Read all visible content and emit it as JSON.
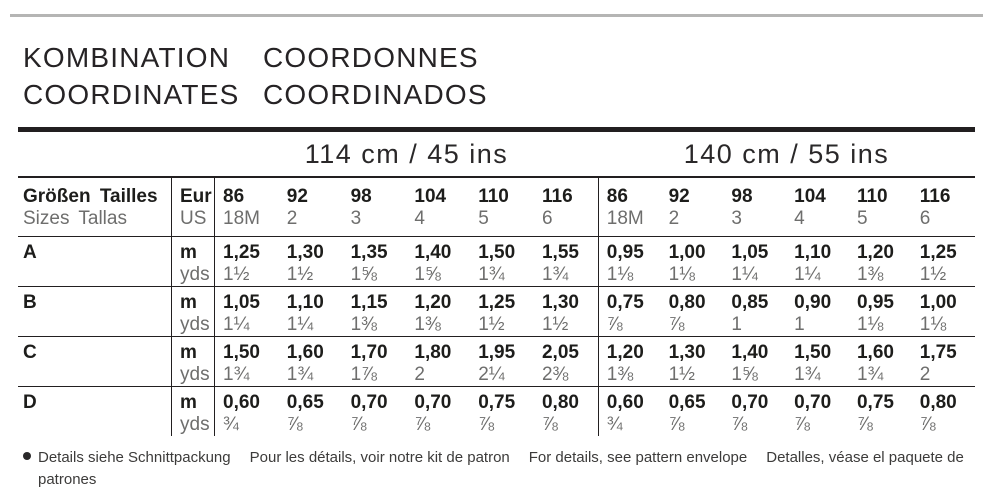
{
  "title": {
    "de": "KOMBINATION",
    "fr": "COORDONNES",
    "en": "COORDINATES",
    "es": "COORDINADOS"
  },
  "width_groups": {
    "g114": "114 cm / 45 ins",
    "g140": "140 cm / 55 ins"
  },
  "table": {
    "size_label_line1": "Größen Tailles",
    "size_label_line2": "Sizes Tallas",
    "unit_header_line1": "Eur",
    "unit_header_line2": "US",
    "unit_m": "m",
    "unit_yds": "yds",
    "sizes_eur": [
      "86",
      "92",
      "98",
      "104",
      "110",
      "116"
    ],
    "sizes_us": [
      "18M",
      "2",
      "3",
      "4",
      "5",
      "6"
    ],
    "rows": [
      {
        "label": "A",
        "m114": [
          "1,25",
          "1,30",
          "1,35",
          "1,40",
          "1,50",
          "1,55"
        ],
        "y114": [
          "1½",
          "1½",
          "1⅝",
          "1⅝",
          "1¾",
          "1¾"
        ],
        "m140": [
          "0,95",
          "1,00",
          "1,05",
          "1,10",
          "1,20",
          "1,25"
        ],
        "y140": [
          "1⅛",
          "1⅛",
          "1¼",
          "1¼",
          "1⅜",
          "1½"
        ]
      },
      {
        "label": "B",
        "m114": [
          "1,05",
          "1,10",
          "1,15",
          "1,20",
          "1,25",
          "1,30"
        ],
        "y114": [
          "1¼",
          "1¼",
          "1⅜",
          "1⅜",
          "1½",
          "1½"
        ],
        "m140": [
          "0,75",
          "0,80",
          "0,85",
          "0,90",
          "0,95",
          "1,00"
        ],
        "y140": [
          "⅞",
          "⅞",
          "1",
          "1",
          "1⅛",
          "1⅛"
        ]
      },
      {
        "label": "C",
        "m114": [
          "1,50",
          "1,60",
          "1,70",
          "1,80",
          "1,95",
          "2,05"
        ],
        "y114": [
          "1¾",
          "1¾",
          "1⅞",
          "2",
          "2¼",
          "2⅜"
        ],
        "m140": [
          "1,20",
          "1,30",
          "1,40",
          "1,50",
          "1,60",
          "1,75"
        ],
        "y140": [
          "1⅜",
          "1½",
          "1⅝",
          "1¾",
          "1¾",
          "2"
        ]
      },
      {
        "label": "D",
        "m114": [
          "0,60",
          "0,65",
          "0,70",
          "0,70",
          "0,75",
          "0,80"
        ],
        "y114": [
          "¾",
          "⅞",
          "⅞",
          "⅞",
          "⅞",
          "⅞"
        ],
        "m140": [
          "0,60",
          "0,65",
          "0,70",
          "0,70",
          "0,75",
          "0,80"
        ],
        "y140": [
          "¾",
          "⅞",
          "⅞",
          "⅞",
          "⅞",
          "⅞"
        ]
      }
    ]
  },
  "footer": {
    "de": "Details siehe Schnittpackung",
    "fr": "Pour les détails, voir notre kit de patron",
    "en": "For details, see pattern envelope",
    "es": "Detalles, véase el paquete de",
    "es_cont": "patrones"
  },
  "colors": {
    "text_dark": "#1d1d1b",
    "text_gray": "#6e6e6d",
    "rule_gray": "#b5b5b4",
    "rule_black": "#221f20"
  }
}
